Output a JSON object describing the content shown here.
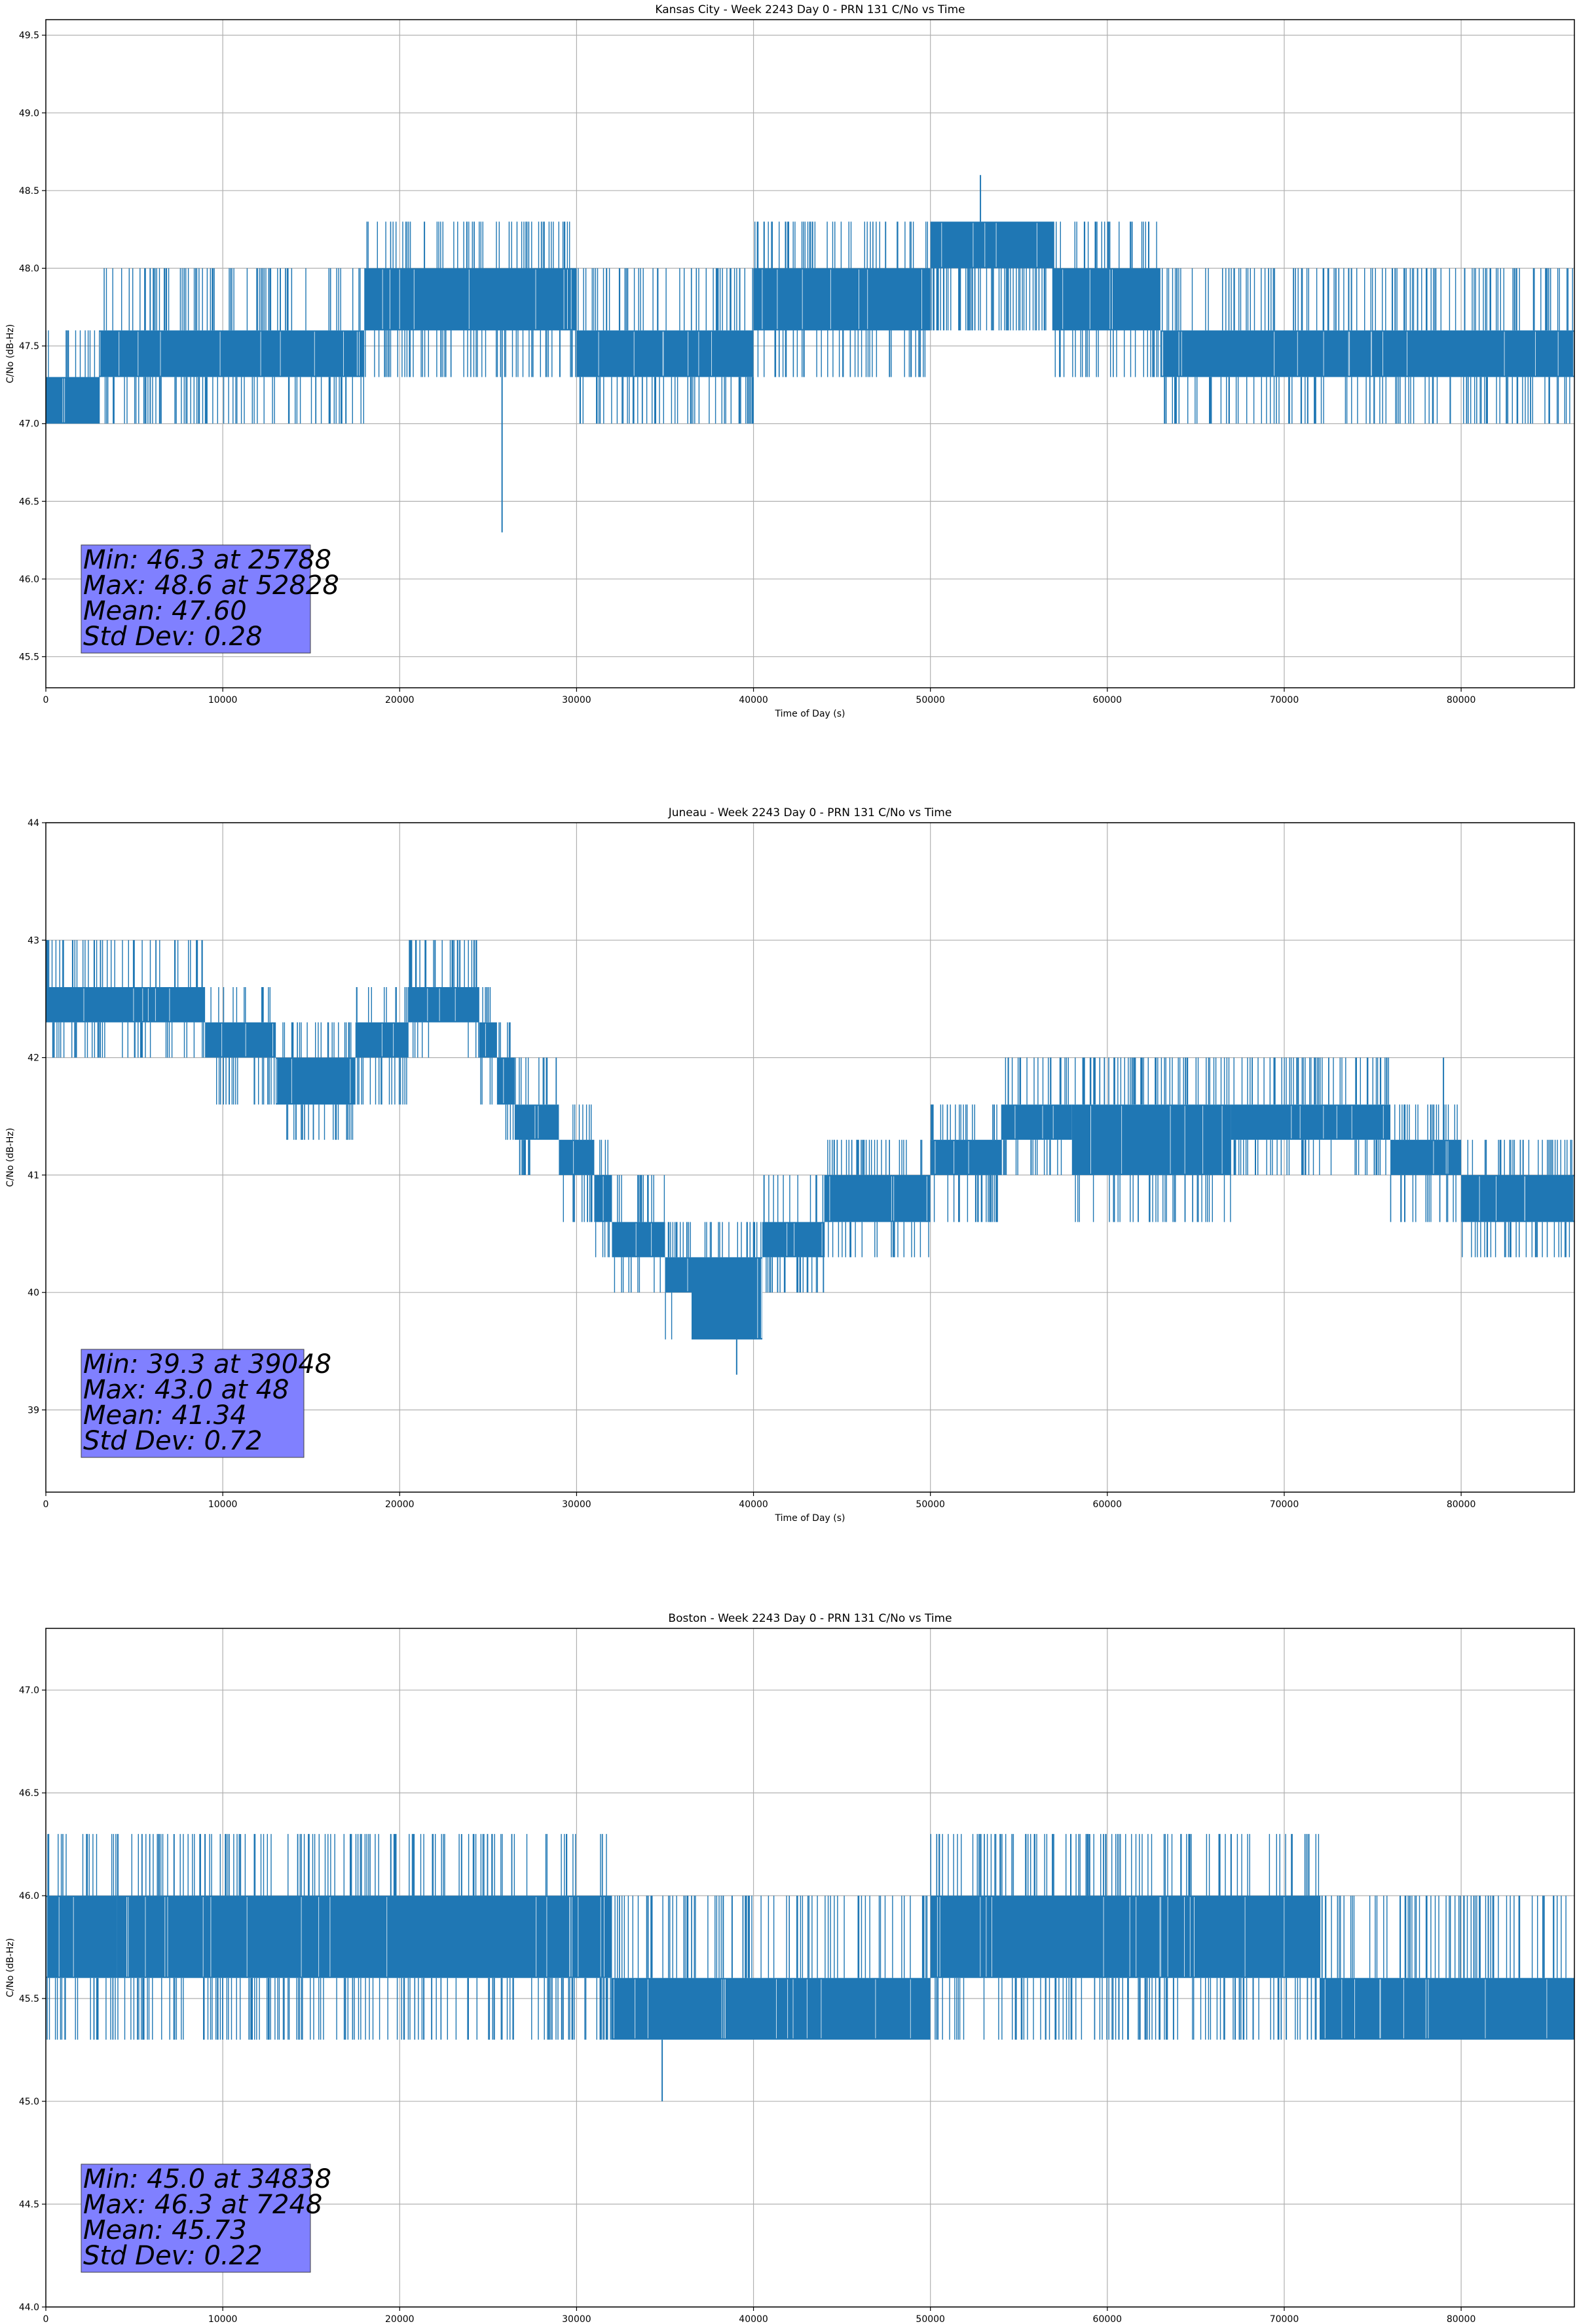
{
  "chart_data": [
    {
      "type": "line",
      "title": "Kansas City - Week 2243 Day 0 - PRN 131 C/No vs Time",
      "xlabel": "Time of Day (s)",
      "ylabel": "C/No (dB-Hz)",
      "xlim": [
        0,
        86400
      ],
      "ylim": [
        45.3,
        49.6
      ],
      "xticks": [
        0,
        10000,
        20000,
        30000,
        40000,
        50000,
        60000,
        70000,
        80000
      ],
      "yticks": [
        45.5,
        46.0,
        46.5,
        47.0,
        47.5,
        48.0,
        48.5,
        49.0,
        49.5
      ],
      "ytick_decimals": 1,
      "grid": true,
      "line_color": "#1f77b4",
      "stats_box_color": "#8080ff",
      "stats": [
        "Min: 46.3 at 25788",
        "Max: 48.6 at 52828",
        "Mean: 47.60",
        "Std Dev: 0.28"
      ],
      "levels": [
        47.0,
        47.3,
        47.6,
        48.0,
        48.3
      ],
      "segments": [
        {
          "x": [
            0,
            3000
          ],
          "low": 47.0,
          "high": 47.3
        },
        {
          "x": [
            3000,
            18000
          ],
          "low": 47.3,
          "high": 47.6
        },
        {
          "x": [
            18000,
            30000
          ],
          "low": 47.6,
          "high": 48.0
        },
        {
          "x": [
            30000,
            40000
          ],
          "low": 47.3,
          "high": 47.6
        },
        {
          "x": [
            40000,
            50000
          ],
          "low": 47.6,
          "high": 48.0
        },
        {
          "x": [
            50000,
            57000
          ],
          "low": 48.0,
          "high": 48.3
        },
        {
          "x": [
            57000,
            63000
          ],
          "low": 47.6,
          "high": 48.0
        },
        {
          "x": [
            63000,
            86400
          ],
          "low": 47.3,
          "high": 47.6
        }
      ],
      "spikes": [
        {
          "x": 25788,
          "y": 46.3
        },
        {
          "x": 52828,
          "y": 48.6
        },
        {
          "x": 6700,
          "y": 48.0
        },
        {
          "x": 73800,
          "y": 48.0
        },
        {
          "x": 80200,
          "y": 48.0
        },
        {
          "x": 21400,
          "y": 48.3
        },
        {
          "x": 23800,
          "y": 48.3
        }
      ]
    },
    {
      "type": "line",
      "title": "Juneau - Week 2243 Day 0 - PRN 131 C/No vs Time",
      "xlabel": "Time of Day (s)",
      "ylabel": "C/No (dB-Hz)",
      "xlim": [
        0,
        86400
      ],
      "ylim": [
        38.3,
        44.0
      ],
      "xticks": [
        0,
        10000,
        20000,
        30000,
        40000,
        50000,
        60000,
        70000,
        80000
      ],
      "yticks": [
        39,
        40,
        41,
        42,
        43,
        44
      ],
      "ytick_decimals": 0,
      "grid": true,
      "line_color": "#1f77b4",
      "stats_box_color": "#8080ff",
      "stats": [
        "Min: 39.3 at 39048",
        "Max: 43.0 at 48",
        "Mean: 41.34",
        "Std Dev: 0.72"
      ],
      "levels": [
        39.6,
        40.0,
        40.3,
        40.6,
        41.0,
        41.3,
        41.6,
        42.0,
        42.3,
        42.6,
        43.0
      ],
      "segments": [
        {
          "x": [
            0,
            9000
          ],
          "low": 42.3,
          "high": 42.6
        },
        {
          "x": [
            9000,
            13000
          ],
          "low": 42.0,
          "high": 42.3
        },
        {
          "x": [
            13000,
            17500
          ],
          "low": 41.6,
          "high": 42.0
        },
        {
          "x": [
            17500,
            20500
          ],
          "low": 42.0,
          "high": 42.3
        },
        {
          "x": [
            20500,
            24500
          ],
          "low": 42.3,
          "high": 42.6
        },
        {
          "x": [
            24500,
            25500
          ],
          "low": 42.0,
          "high": 42.3
        },
        {
          "x": [
            25500,
            26500
          ],
          "low": 41.6,
          "high": 42.0
        },
        {
          "x": [
            26500,
            29000
          ],
          "low": 41.3,
          "high": 41.6
        },
        {
          "x": [
            29000,
            31000
          ],
          "low": 41.0,
          "high": 41.3
        },
        {
          "x": [
            31000,
            32000
          ],
          "low": 40.6,
          "high": 41.0
        },
        {
          "x": [
            32000,
            35000
          ],
          "low": 40.3,
          "high": 40.6
        },
        {
          "x": [
            35000,
            36500
          ],
          "low": 40.0,
          "high": 40.3
        },
        {
          "x": [
            36500,
            40500
          ],
          "low": 39.6,
          "high": 40.3
        },
        {
          "x": [
            40500,
            44000
          ],
          "low": 40.3,
          "high": 40.6
        },
        {
          "x": [
            44000,
            50000
          ],
          "low": 40.6,
          "high": 41.0
        },
        {
          "x": [
            50000,
            54000
          ],
          "low": 41.0,
          "high": 41.3
        },
        {
          "x": [
            54000,
            58000
          ],
          "low": 41.3,
          "high": 41.6
        },
        {
          "x": [
            58000,
            67000
          ],
          "low": 41.0,
          "high": 41.6
        },
        {
          "x": [
            67000,
            76000
          ],
          "low": 41.3,
          "high": 41.6
        },
        {
          "x": [
            76000,
            80000
          ],
          "low": 41.0,
          "high": 41.3
        },
        {
          "x": [
            80000,
            86400
          ],
          "low": 40.6,
          "high": 41.0
        }
      ],
      "spikes": [
        {
          "x": 39048,
          "y": 39.3
        },
        {
          "x": 48,
          "y": 43.0
        },
        {
          "x": 14500,
          "y": 41.3
        },
        {
          "x": 54400,
          "y": 42.0
        },
        {
          "x": 58700,
          "y": 42.0
        },
        {
          "x": 79000,
          "y": 42.0
        },
        {
          "x": 22000,
          "y": 43.0
        },
        {
          "x": 23400,
          "y": 43.0
        }
      ]
    },
    {
      "type": "line",
      "title": "Boston - Week 2243 Day 0 - PRN 131 C/No vs Time",
      "xlabel": "Time of Day (s)",
      "ylabel": "C/No (dB-Hz)",
      "xlim": [
        0,
        86400
      ],
      "ylim": [
        44.0,
        47.3
      ],
      "xticks": [
        0,
        10000,
        20000,
        30000,
        40000,
        50000,
        60000,
        70000,
        80000
      ],
      "yticks": [
        44.0,
        44.5,
        45.0,
        45.5,
        46.0,
        46.5,
        47.0
      ],
      "ytick_decimals": 1,
      "grid": true,
      "line_color": "#1f77b4",
      "stats_box_color": "#8080ff",
      "stats": [
        "Min: 45.0 at 34838",
        "Max: 46.3 at 7248",
        "Mean: 45.73",
        "Std Dev: 0.22"
      ],
      "levels": [
        45.3,
        45.6,
        46.0,
        46.3
      ],
      "segments": [
        {
          "x": [
            0,
            4000
          ],
          "low": 45.6,
          "high": 46.0
        },
        {
          "x": [
            4000,
            32000
          ],
          "low": 45.6,
          "high": 46.0
        },
        {
          "x": [
            32000,
            50000
          ],
          "low": 45.3,
          "high": 45.6
        },
        {
          "x": [
            50000,
            72000
          ],
          "low": 45.6,
          "high": 46.0
        },
        {
          "x": [
            72000,
            86400
          ],
          "low": 45.3,
          "high": 45.6
        }
      ],
      "spikes": [
        {
          "x": 34838,
          "y": 45.0
        },
        {
          "x": 7248,
          "y": 46.3
        },
        {
          "x": 9000,
          "y": 46.3
        },
        {
          "x": 11000,
          "y": 46.3
        },
        {
          "x": 19500,
          "y": 46.3
        },
        {
          "x": 23500,
          "y": 46.3
        },
        {
          "x": 59000,
          "y": 46.3
        },
        {
          "x": 67000,
          "y": 46.3
        }
      ]
    }
  ]
}
